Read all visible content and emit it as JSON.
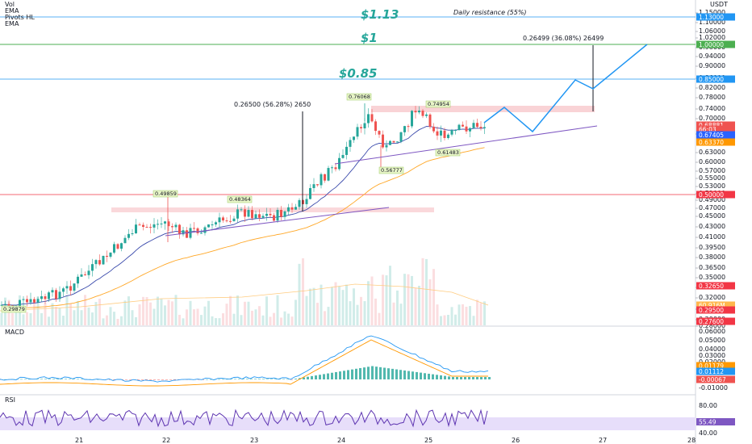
{
  "chart_data": {
    "type": "candlestick",
    "title": "",
    "currency": "USDT",
    "indicators_legend": [
      "Vol",
      "EMA",
      "Pivots HL",
      "EMA"
    ],
    "x_ticks": [
      "21",
      "22",
      "23",
      "24",
      "25",
      "26",
      "27",
      "28"
    ],
    "price_ticks": [
      "1.15000",
      "1.10000",
      "1.06000",
      "1.02000",
      "0.98000",
      "0.94000",
      "0.90000",
      "0.86000",
      "0.82000",
      "0.78000",
      "0.74000",
      "0.70000",
      "0.67000",
      "0.63000",
      "0.60000",
      "0.57000",
      "0.55000",
      "0.53000",
      "0.51000",
      "0.49000",
      "0.47000",
      "0.45000",
      "0.43000",
      "0.41000",
      "0.39500",
      "0.38000",
      "0.36500",
      "0.35000",
      "0.33500",
      "0.32000",
      "0.31000",
      "0.29000",
      "0.28000"
    ],
    "price_badges": [
      {
        "label": "1.13000",
        "color": "#2196f3"
      },
      {
        "label": "1.00000",
        "color": "#4caf50"
      },
      {
        "label": "0.85000",
        "color": "#2196f3"
      },
      {
        "label": "0.68881",
        "color": "#ef5350"
      },
      {
        "label": "66:03",
        "color": "#ef5350"
      },
      {
        "label": "0.67405",
        "color": "#2962ff"
      },
      {
        "label": "0.63370",
        "color": "#ff9800"
      },
      {
        "label": "0.50000",
        "color": "#f23645"
      },
      {
        "label": "0.32650",
        "color": "#f23645"
      },
      {
        "label": "60.916M",
        "color": "#ffb74d"
      },
      {
        "label": "0.29500",
        "color": "#f23645"
      },
      {
        "label": "0.27600",
        "color": "#f23645"
      }
    ],
    "annotations": {
      "target_113": "$1.13",
      "daily_resistance": "Daily resistance (55%)",
      "target_1": "$1",
      "target_085": "$0.85",
      "measure_1": "0.26500 (56.28%) 2650",
      "measure_2": "0.26499 (36.08%) 26499"
    },
    "pivot_labels": [
      "0.76068",
      "0.74954",
      "0.49859",
      "0.48364",
      "0.56777",
      "0.61483",
      "0.29879"
    ],
    "horizontal_levels": [
      {
        "price": 1.13,
        "color": "#2196f3"
      },
      {
        "price": 1.0,
        "color": "#4caf50"
      },
      {
        "price": 0.85,
        "color": "#2196f3"
      },
      {
        "price": 0.5,
        "color": "#f23645"
      }
    ],
    "macd": {
      "label": "MACD",
      "ticks": [
        "0.06000",
        "0.05000",
        "0.04000",
        "0.03000",
        "0.02000",
        "-0.01000"
      ],
      "badges": [
        {
          "label": "0.01179",
          "color": "#ff9800"
        },
        {
          "label": "0.01112",
          "color": "#2196f3"
        },
        {
          "label": "-0.00067",
          "color": "#ef5350"
        }
      ]
    },
    "rsi": {
      "label": "RSI",
      "ticks": [
        "80.00",
        "40.00"
      ],
      "badge": {
        "label": "55.49",
        "color": "#7e57c2"
      }
    }
  }
}
